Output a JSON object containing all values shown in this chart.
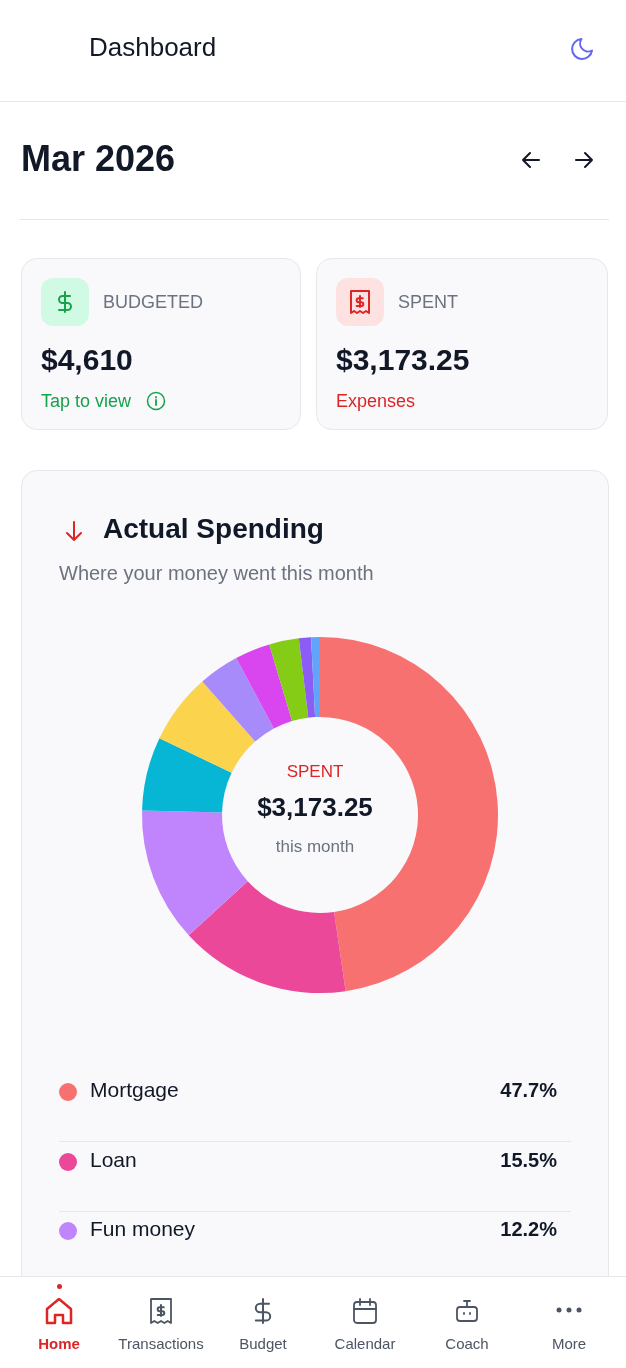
{
  "chart_data": {
    "type": "donut",
    "title": "Actual Spending",
    "subtitle": "Where your money went this month",
    "categories": [
      "Mortgage",
      "Loan",
      "Fun money",
      null,
      null,
      null,
      null,
      null,
      null,
      null
    ],
    "values": [
      47.7,
      15.5,
      12.2,
      6.7,
      6.4,
      3.7,
      3.2,
      2.7,
      1.1,
      0.8
    ],
    "value_labels": [
      "47.7%",
      "15.5%",
      "12.2%",
      null,
      null,
      null,
      null,
      null,
      null,
      null
    ],
    "colors": [
      "#f87171",
      "#ec4899",
      "#c084fc",
      "#06b6d4",
      "#fcd34d",
      "#a78bfa",
      "#d946ef",
      "#84cc16",
      "#8b5cf6",
      "#60a5fa"
    ],
    "legend": "bottom",
    "annotations": [
      "Dashboard",
      "Mar 2026",
      "BUDGETED",
      "$4,610",
      "Tap to view",
      "SPENT",
      "$3,173.25",
      "Expenses",
      "SPENT",
      "$3,173.25",
      "this month",
      "Home",
      "Transactions",
      "Budget",
      "Calendar",
      "Coach",
      "More"
    ]
  }
}
